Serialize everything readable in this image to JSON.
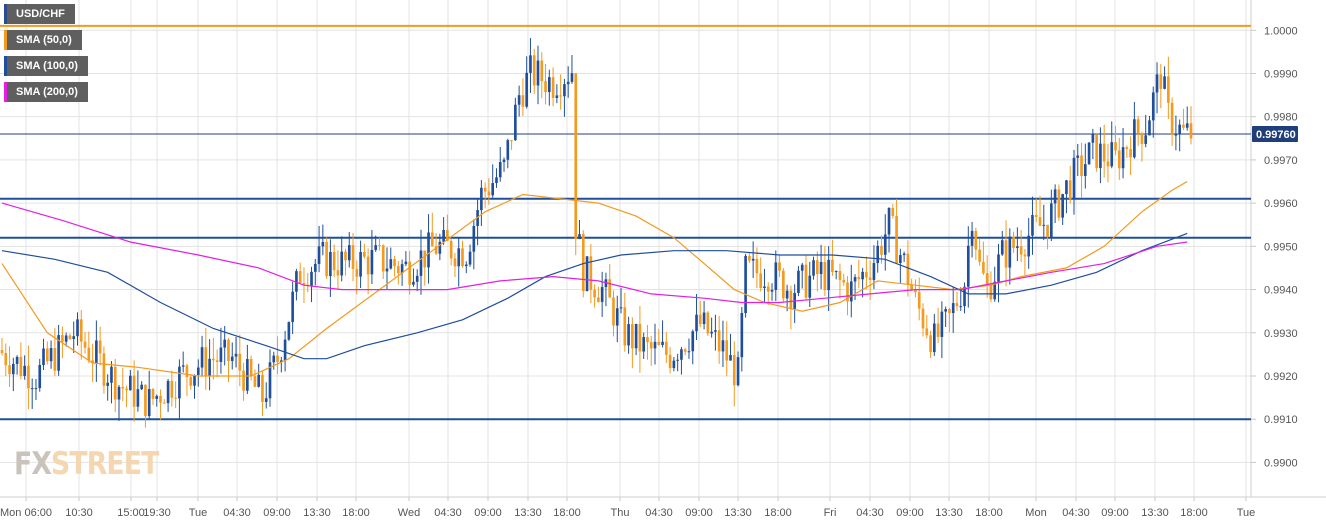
{
  "legend": [
    {
      "label": "USD/CHF",
      "color": "#2b4d8f"
    },
    {
      "label": "SMA (50,0)",
      "color": "#f39a1f"
    },
    {
      "label": "SMA (100,0)",
      "color": "#1f4e9c"
    },
    {
      "label": "SMA (200,0)",
      "color": "#e21fe2"
    }
  ],
  "watermark": {
    "part1": "FX",
    "part2": "STREET"
  },
  "chart_data": {
    "type": "candlestick",
    "ylim": [
      0.9892,
      1.0007
    ],
    "y_ticks": [
      "1.0000",
      "0.9990",
      "0.9980",
      "0.9970",
      "0.9960",
      "0.9950",
      "0.9940",
      "0.9930",
      "0.9920",
      "0.9910",
      "0.9900"
    ],
    "x_ticks": [
      "Mon 06:00",
      "10:30",
      "15:00",
      "19:30",
      "Tue",
      "04:30",
      "09:00",
      "13:30",
      "18:00",
      "Wed",
      "04:30",
      "09:00",
      "13:30",
      "18:00",
      "Thu",
      "04:30",
      "09:00",
      "13:30",
      "18:00",
      "Fri",
      "04:30",
      "09:00",
      "13:30",
      "18:00",
      "Mon",
      "04:30",
      "09:00",
      "13:30",
      "18:00",
      "Tue"
    ],
    "grid": true,
    "current_price": {
      "value": 0.9976,
      "label": "0.99760",
      "color": "#1f3f7a"
    },
    "horizontal_levels": [
      {
        "value": 1.0001,
        "color": "#f39a1f"
      },
      {
        "value": 0.9961,
        "color": "#1f4e9c"
      },
      {
        "value": 0.9952,
        "color": "#1f4e9c"
      },
      {
        "value": 0.991,
        "color": "#1f4e9c"
      }
    ],
    "series": [
      {
        "name": "USD/CHF",
        "type": "candlestick",
        "up_color": "#1f4e9c",
        "down_color": "#f39a1f",
        "segments": [
          {
            "t": 0,
            "p": 0.9926
          },
          {
            "t": 10,
            "p": 0.992
          },
          {
            "t": 20,
            "p": 0.993
          },
          {
            "t": 32,
            "p": 0.9918
          },
          {
            "t": 40,
            "p": 0.9914
          },
          {
            "t": 48,
            "p": 0.992
          },
          {
            "t": 56,
            "p": 0.9924
          },
          {
            "t": 62,
            "p": 0.9924
          },
          {
            "t": 70,
            "p": 0.9915
          },
          {
            "t": 74,
            "p": 0.9924
          },
          {
            "t": 80,
            "p": 0.9944
          },
          {
            "t": 86,
            "p": 0.9947
          },
          {
            "t": 92,
            "p": 0.9946
          },
          {
            "t": 100,
            "p": 0.9947
          },
          {
            "t": 108,
            "p": 0.9945
          },
          {
            "t": 116,
            "p": 0.995
          },
          {
            "t": 124,
            "p": 0.9949
          },
          {
            "t": 128,
            "p": 0.9962
          },
          {
            "t": 134,
            "p": 0.9968
          },
          {
            "t": 138,
            "p": 0.9985
          },
          {
            "t": 141,
            "p": 0.999
          },
          {
            "t": 147,
            "p": 0.9988
          },
          {
            "t": 152,
            "p": 0.9991
          },
          {
            "t": 153,
            "p": 0.9955
          },
          {
            "t": 155,
            "p": 0.9944
          },
          {
            "t": 160,
            "p": 0.994
          },
          {
            "t": 166,
            "p": 0.993
          },
          {
            "t": 172,
            "p": 0.9926
          },
          {
            "t": 178,
            "p": 0.9925
          },
          {
            "t": 186,
            "p": 0.9932
          },
          {
            "t": 192,
            "p": 0.9926
          },
          {
            "t": 196,
            "p": 0.992
          },
          {
            "t": 198,
            "p": 0.9944
          },
          {
            "t": 204,
            "p": 0.9944
          },
          {
            "t": 210,
            "p": 0.994
          },
          {
            "t": 218,
            "p": 0.9944
          },
          {
            "t": 226,
            "p": 0.994
          },
          {
            "t": 232,
            "p": 0.9947
          },
          {
            "t": 236,
            "p": 0.9955
          },
          {
            "t": 240,
            "p": 0.9946
          },
          {
            "t": 243,
            "p": 0.9937
          },
          {
            "t": 248,
            "p": 0.9928
          },
          {
            "t": 252,
            "p": 0.9933
          },
          {
            "t": 256,
            "p": 0.9942
          },
          {
            "t": 258,
            "p": 0.9958
          },
          {
            "t": 260,
            "p": 0.9945
          },
          {
            "t": 262,
            "p": 0.994
          },
          {
            "t": 266,
            "p": 0.9948
          },
          {
            "t": 272,
            "p": 0.9952
          },
          {
            "t": 278,
            "p": 0.9956
          },
          {
            "t": 284,
            "p": 0.9965
          },
          {
            "t": 290,
            "p": 0.9972
          },
          {
            "t": 296,
            "p": 0.997
          },
          {
            "t": 300,
            "p": 0.9975
          },
          {
            "t": 304,
            "p": 0.9978
          },
          {
            "t": 308,
            "p": 0.999
          },
          {
            "t": 310,
            "p": 0.998
          },
          {
            "t": 314,
            "p": 0.9976
          }
        ]
      },
      {
        "name": "SMA (50,0)",
        "color": "#f39a1f",
        "points": [
          [
            0,
            0.9946
          ],
          [
            12,
            0.993
          ],
          [
            24,
            0.9923
          ],
          [
            36,
            0.9922
          ],
          [
            52,
            0.992
          ],
          [
            66,
            0.992
          ],
          [
            76,
            0.9924
          ],
          [
            86,
            0.9931
          ],
          [
            100,
            0.994
          ],
          [
            114,
            0.9949
          ],
          [
            128,
            0.9958
          ],
          [
            138,
            0.9962
          ],
          [
            148,
            0.9961
          ],
          [
            158,
            0.996
          ],
          [
            168,
            0.9957
          ],
          [
            178,
            0.9952
          ],
          [
            186,
            0.9946
          ],
          [
            194,
            0.994
          ],
          [
            202,
            0.9937
          ],
          [
            212,
            0.9935
          ],
          [
            222,
            0.9937
          ],
          [
            232,
            0.9942
          ],
          [
            242,
            0.9941
          ],
          [
            252,
            0.994
          ],
          [
            262,
            0.9941
          ],
          [
            270,
            0.9943
          ],
          [
            282,
            0.9945
          ],
          [
            292,
            0.995
          ],
          [
            302,
            0.9958
          ],
          [
            310,
            0.9963
          ],
          [
            314,
            0.9965
          ]
        ]
      },
      {
        "name": "SMA (100,0)",
        "color": "#1f4e9c",
        "points": [
          [
            0,
            0.9949
          ],
          [
            14,
            0.9947
          ],
          [
            28,
            0.9944
          ],
          [
            42,
            0.9937
          ],
          [
            56,
            0.9931
          ],
          [
            70,
            0.9927
          ],
          [
            80,
            0.9924
          ],
          [
            86,
            0.9924
          ],
          [
            96,
            0.9927
          ],
          [
            110,
            0.993
          ],
          [
            122,
            0.9933
          ],
          [
            134,
            0.9938
          ],
          [
            144,
            0.9943
          ],
          [
            154,
            0.9946
          ],
          [
            164,
            0.9948
          ],
          [
            178,
            0.9949
          ],
          [
            192,
            0.9949
          ],
          [
            206,
            0.9948
          ],
          [
            220,
            0.9948
          ],
          [
            234,
            0.9947
          ],
          [
            246,
            0.9943
          ],
          [
            256,
            0.9939
          ],
          [
            266,
            0.9939
          ],
          [
            278,
            0.9941
          ],
          [
            290,
            0.9944
          ],
          [
            302,
            0.9949
          ],
          [
            314,
            0.9953
          ]
        ]
      },
      {
        "name": "SMA (200,0)",
        "color": "#e21fe2",
        "points": [
          [
            0,
            0.996
          ],
          [
            16,
            0.9956
          ],
          [
            34,
            0.9951
          ],
          [
            52,
            0.9948
          ],
          [
            68,
            0.9945
          ],
          [
            80,
            0.9941
          ],
          [
            90,
            0.994
          ],
          [
            104,
            0.994
          ],
          [
            118,
            0.994
          ],
          [
            132,
            0.9942
          ],
          [
            146,
            0.9943
          ],
          [
            158,
            0.9942
          ],
          [
            172,
            0.9939
          ],
          [
            186,
            0.9938
          ],
          [
            196,
            0.9937
          ],
          [
            206,
            0.9937
          ],
          [
            218,
            0.9938
          ],
          [
            230,
            0.9939
          ],
          [
            242,
            0.994
          ],
          [
            254,
            0.994
          ],
          [
            266,
            0.9942
          ],
          [
            278,
            0.9944
          ],
          [
            292,
            0.9946
          ],
          [
            306,
            0.995
          ],
          [
            314,
            0.9951
          ]
        ]
      }
    ]
  }
}
